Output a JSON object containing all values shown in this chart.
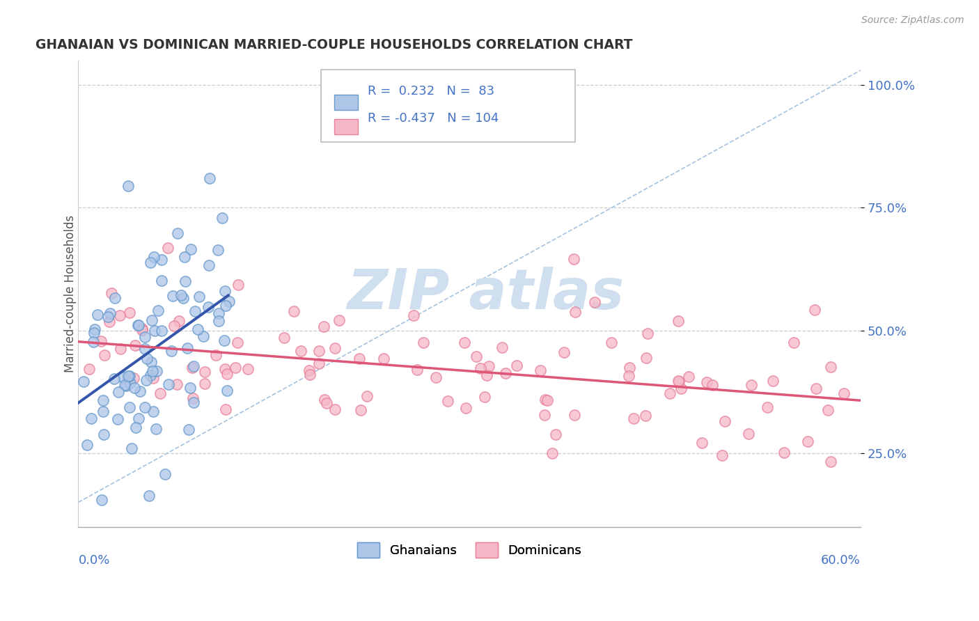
{
  "title": "GHANAIAN VS DOMINICAN MARRIED-COUPLE HOUSEHOLDS CORRELATION CHART",
  "source": "Source: ZipAtlas.com",
  "ylabel": "Married-couple Households",
  "ytick_labels": [
    "25.0%",
    "50.0%",
    "75.0%",
    "100.0%"
  ],
  "ytick_values": [
    0.25,
    0.5,
    0.75,
    1.0
  ],
  "xmin": 0.0,
  "xmax": 0.6,
  "ymin": 0.1,
  "ymax": 1.05,
  "r_ghanaian": 0.232,
  "n_ghanaian": 83,
  "r_dominican": -0.437,
  "n_dominican": 104,
  "color_ghanaian_fill": "#aec6e8",
  "color_ghanaian_edge": "#6699cc",
  "color_dominican_fill": "#f5b8c8",
  "color_dominican_edge": "#e8809a",
  "color_line_ghanaian": "#3355aa",
  "color_line_dominican": "#dd5577",
  "color_diagonal": "#99bbdd",
  "watermark_color": "#d0dff0",
  "title_color": "#333333",
  "axis_label_color": "#4472c4",
  "tick_color": "#4472c4"
}
